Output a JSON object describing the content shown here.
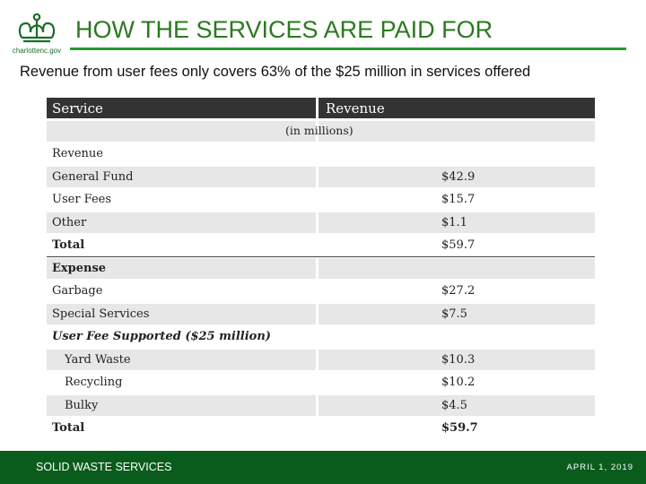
{
  "logo": {
    "text": "charlottenc.gov",
    "icon": "crown-icon",
    "color": "#1a6e2a"
  },
  "title": "HOW THE SERVICES ARE PAID FOR",
  "subtitle": "Revenue from user fees only covers 63% of the $25 million in services offered",
  "table": {
    "headers": {
      "service": "Service",
      "revenue": "Revenue"
    },
    "units": "(in millions)",
    "rows": [
      {
        "label": "Revenue",
        "value": "",
        "style": "normal"
      },
      {
        "label": "General Fund",
        "value": "$42.9",
        "style": "normal"
      },
      {
        "label": "User Fees",
        "value": "$15.7",
        "style": "normal"
      },
      {
        "label": "Other",
        "value": "$1.1",
        "style": "normal"
      },
      {
        "label": "Total",
        "value": "$59.7",
        "style": "bold"
      },
      {
        "label": "Expense",
        "value": "",
        "style": "bold"
      },
      {
        "label": "Garbage",
        "value": "$27.2",
        "style": "normal"
      },
      {
        "label": "Special Services",
        "value": "$7.5",
        "style": "normal"
      },
      {
        "label": "User Fee Supported ($25 million)",
        "value": "",
        "style": "italic-bold"
      },
      {
        "label": "Yard Waste",
        "value": "$10.3",
        "style": "normal"
      },
      {
        "label": "Recycling",
        "value": "$10.2",
        "style": "normal"
      },
      {
        "label": "Bulky",
        "value": "$4.5",
        "style": "normal"
      },
      {
        "label": "Total",
        "value": "$59.7",
        "style": "bold"
      }
    ]
  },
  "footer": {
    "left": "SOLID WASTE SERVICES",
    "right": "APRIL 1, 2019"
  },
  "colors": {
    "title": "#2a7a1e",
    "rule": "#2a9a2e",
    "header_bg": "#333333",
    "row_shade": "#e7e7e7",
    "footer_bg": "#0a5c1c"
  }
}
